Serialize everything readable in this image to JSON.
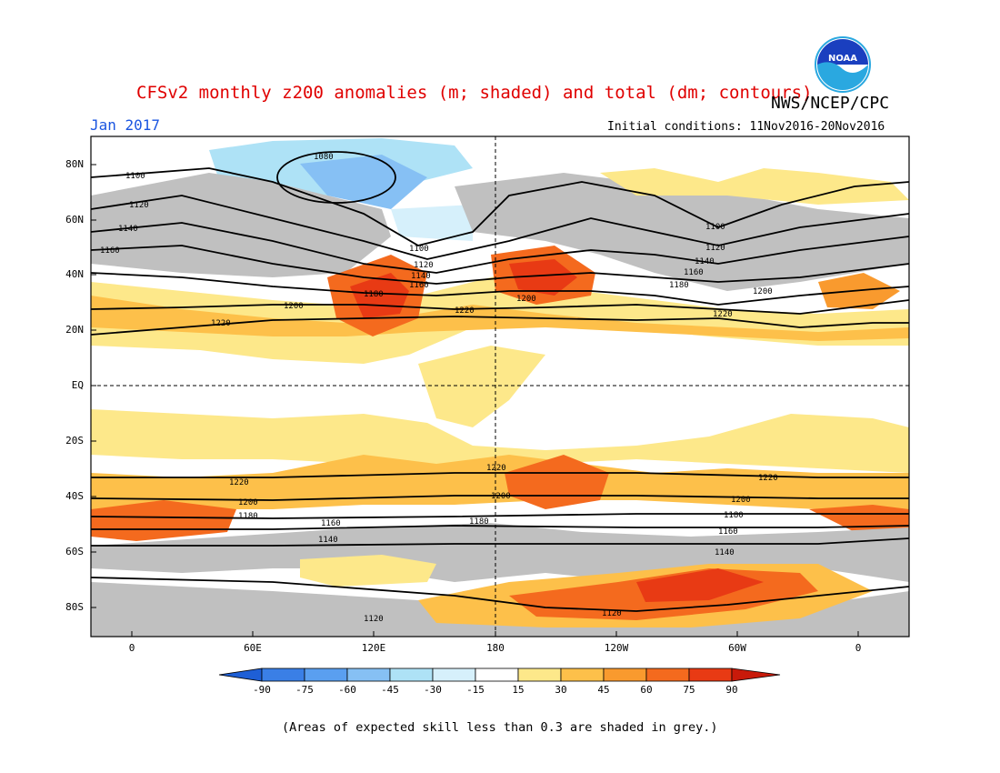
{
  "header": {
    "title": "CFSv2 monthly z200 anomalies (m; shaded) and total (dm; contours)",
    "agency": "NWS/NCEP/CPC",
    "month": "Jan 2017",
    "initial_conditions": "Initial conditions: 11Nov2016-20Nov2016",
    "logo_text": "NOAA"
  },
  "axes": {
    "lat_labels": [
      "80N",
      "60N",
      "40N",
      "20N",
      "EQ",
      "20S",
      "40S",
      "60S",
      "80S"
    ],
    "lon_labels": [
      "0",
      "60E",
      "120E",
      "180",
      "120W",
      "60W",
      "0"
    ]
  },
  "colorbar": {
    "labels": [
      "-90",
      "-75",
      "-60",
      "-45",
      "-30",
      "-15",
      "15",
      "30",
      "45",
      "60",
      "75",
      "90"
    ],
    "colors": [
      "#1e5fd6",
      "#3a7fe6",
      "#5a9ff0",
      "#86c0f4",
      "#aee2f6",
      "#ffffff",
      "#fde88a",
      "#fdc04a",
      "#f99a2e",
      "#f46a1e",
      "#e83a14",
      "#c81a0a"
    ]
  },
  "contours": {
    "labels": [
      "1080",
      "1100",
      "1120",
      "1140",
      "1160",
      "1180",
      "1200",
      "1220"
    ]
  },
  "colors": {
    "grey_skill": "#c0c0c0",
    "title_red": "#e00000",
    "month_blue": "#1a55e0"
  },
  "footnote": "(Areas of expected skill less than 0.3 are shaded in grey.)"
}
